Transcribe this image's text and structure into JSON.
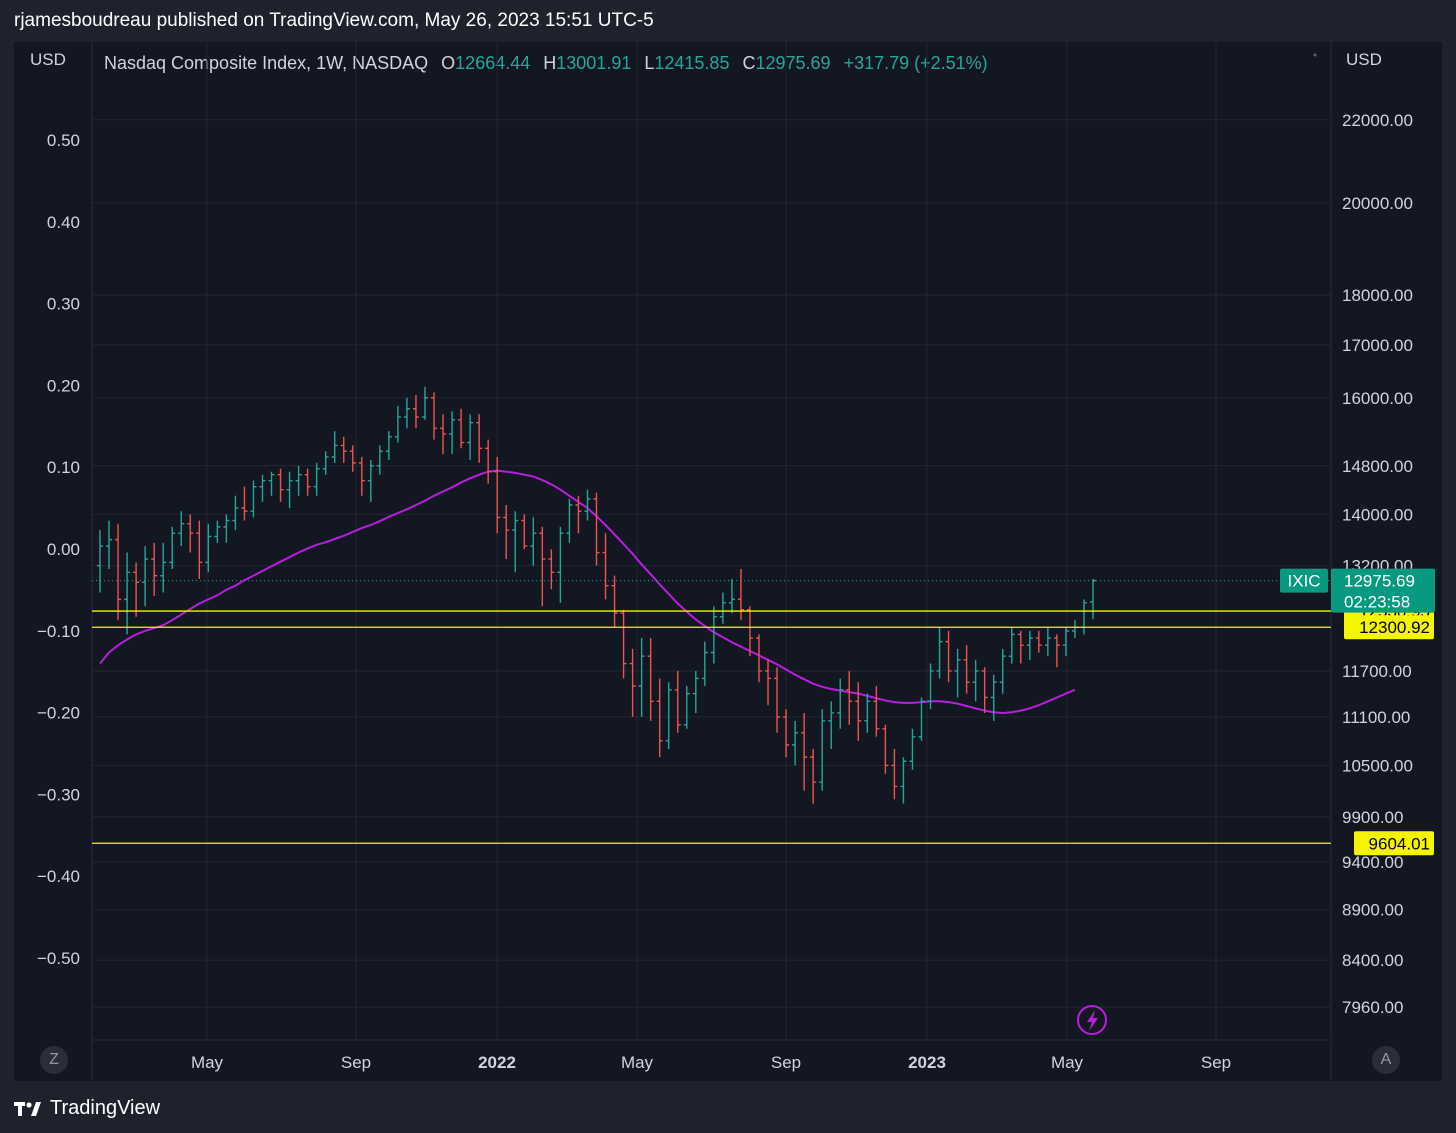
{
  "header": {
    "publisher_line": "rjamesboudreau published on TradingView.com, May 26, 2023 15:51 UTC-5",
    "left_currency": "USD",
    "right_currency": "USD",
    "footer_brand": "TradingView",
    "scale_left_button": "Z",
    "scale_right_button": "A"
  },
  "legend": {
    "symbol_name": "Nasdaq Composite Index, 1W, NASDAQ",
    "open_label": "O",
    "open": "12664.44",
    "high_label": "H",
    "high": "13001.91",
    "low_label": "L",
    "low": "12415.85",
    "close_label": "C",
    "close": "12975.69",
    "change": "+317.79 (+2.51%)"
  },
  "colors": {
    "up": "#26a69a",
    "down": "#ef5350",
    "ma": "#b91de0",
    "level": "#f5f500",
    "grid": "#232734",
    "last_price_badge": "#089981"
  },
  "chart_data": {
    "type": "ohlc",
    "title": "Nasdaq Composite Index, 1W, NASDAQ",
    "right_axis": {
      "scale": "log",
      "ticks": [
        22000,
        20000,
        18000,
        17000,
        16000,
        14800,
        14000,
        13200,
        11700,
        11100,
        10500,
        9900,
        9400,
        8900,
        8400,
        7960
      ]
    },
    "left_axis": {
      "ticks": [
        "0.50",
        "0.40",
        "0.30",
        "0.20",
        "0.10",
        "0.00",
        "−0.10",
        "−0.20",
        "−0.30",
        "−0.40",
        "−0.50"
      ]
    },
    "x_ticks": [
      {
        "label": "May",
        "bold": false
      },
      {
        "label": "Sep",
        "bold": false
      },
      {
        "label": "2022",
        "bold": true
      },
      {
        "label": "May",
        "bold": false
      },
      {
        "label": "Sep",
        "bold": false
      },
      {
        "label": "2023",
        "bold": true
      },
      {
        "label": "May",
        "bold": false
      },
      {
        "label": "Sep",
        "bold": false
      }
    ],
    "series_symbol": "IXIC",
    "last_price": "12975.69",
    "countdown": "02:23:58",
    "horizontal_levels": [
      "12530.95",
      "12300.92",
      "9604.01"
    ],
    "ohlc": [
      [
        13200,
        13750,
        12800,
        13500
      ],
      [
        13500,
        13900,
        13150,
        13600
      ],
      [
        13600,
        13850,
        12400,
        12700
      ],
      [
        12700,
        13400,
        12200,
        13100
      ],
      [
        13100,
        13250,
        12450,
        12950
      ],
      [
        12950,
        13500,
        12600,
        13300
      ],
      [
        13300,
        13550,
        12750,
        13050
      ],
      [
        13050,
        13550,
        12800,
        13250
      ],
      [
        13250,
        13800,
        13150,
        13700
      ],
      [
        13700,
        14050,
        13500,
        13850
      ],
      [
        13850,
        14000,
        13400,
        13700
      ],
      [
        13700,
        13900,
        13000,
        13250
      ],
      [
        13250,
        13850,
        13100,
        13650
      ],
      [
        13650,
        13900,
        13550,
        13800
      ],
      [
        13800,
        14000,
        13550,
        13900
      ],
      [
        13900,
        14300,
        13750,
        14100
      ],
      [
        14100,
        14450,
        13900,
        14050
      ],
      [
        14050,
        14550,
        13950,
        14450
      ],
      [
        14450,
        14650,
        14200,
        14550
      ],
      [
        14550,
        14700,
        14300,
        14650
      ],
      [
        14650,
        14750,
        14200,
        14400
      ],
      [
        14400,
        14700,
        14100,
        14550
      ],
      [
        14550,
        14800,
        14300,
        14650
      ],
      [
        14650,
        14750,
        14300,
        14450
      ],
      [
        14450,
        14850,
        14300,
        14750
      ],
      [
        14750,
        15050,
        14650,
        14950
      ],
      [
        14950,
        15400,
        14850,
        15150
      ],
      [
        15150,
        15300,
        14850,
        15050
      ],
      [
        15050,
        15150,
        14700,
        14850
      ],
      [
        14850,
        14950,
        14300,
        14550
      ],
      [
        14550,
        14900,
        14200,
        14800
      ],
      [
        14800,
        15150,
        14650,
        15050
      ],
      [
        15050,
        15400,
        14900,
        15300
      ],
      [
        15300,
        15850,
        15200,
        15650
      ],
      [
        15650,
        16000,
        15450,
        15800
      ],
      [
        15800,
        16050,
        15450,
        15650
      ],
      [
        15650,
        16200,
        15600,
        16000
      ],
      [
        16000,
        16100,
        15250,
        15450
      ],
      [
        15450,
        15700,
        15000,
        15350
      ],
      [
        15350,
        15750,
        15000,
        15600
      ],
      [
        15600,
        15800,
        15100,
        15200
      ],
      [
        15200,
        15700,
        14900,
        15550
      ],
      [
        15550,
        15700,
        14850,
        15100
      ],
      [
        15100,
        15250,
        14500,
        14700
      ],
      [
        14700,
        14950,
        13700,
        13950
      ],
      [
        13950,
        14150,
        13300,
        13750
      ],
      [
        13750,
        14050,
        13100,
        13900
      ],
      [
        13900,
        14000,
        13450,
        13500
      ],
      [
        13500,
        13950,
        13200,
        13700
      ],
      [
        13700,
        13800,
        12600,
        13300
      ],
      [
        13300,
        13450,
        12850,
        13100
      ],
      [
        13100,
        13800,
        12650,
        13700
      ],
      [
        13700,
        14250,
        13550,
        14150
      ],
      [
        14150,
        14300,
        13700,
        14050
      ],
      [
        14050,
        14400,
        13900,
        14250
      ],
      [
        14250,
        14350,
        13200,
        13400
      ],
      [
        13400,
        13700,
        12700,
        12900
      ],
      [
        12900,
        13050,
        12300,
        12500
      ],
      [
        12500,
        12550,
        11600,
        11800
      ],
      [
        11800,
        12000,
        11100,
        11500
      ],
      [
        11500,
        12150,
        11100,
        11900
      ],
      [
        11900,
        12150,
        11050,
        11300
      ],
      [
        11300,
        11600,
        10600,
        10800
      ],
      [
        10800,
        11550,
        10700,
        11450
      ],
      [
        11450,
        11700,
        10900,
        11000
      ],
      [
        11000,
        11500,
        10950,
        11400
      ],
      [
        11400,
        11700,
        11150,
        11600
      ],
      [
        11600,
        12100,
        11500,
        11950
      ],
      [
        11950,
        12600,
        11800,
        12450
      ],
      [
        12450,
        12800,
        12350,
        12650
      ],
      [
        12650,
        13000,
        12500,
        12700
      ],
      [
        12700,
        13150,
        12400,
        12550
      ],
      [
        12550,
        12600,
        11900,
        12150
      ],
      [
        12150,
        12200,
        11550,
        11700
      ],
      [
        11700,
        11850,
        11250,
        11600
      ],
      [
        11600,
        11750,
        10900,
        11100
      ],
      [
        11100,
        11200,
        10600,
        10750
      ],
      [
        10750,
        11050,
        10500,
        10900
      ],
      [
        10900,
        11150,
        10200,
        10600
      ],
      [
        10600,
        10700,
        10050,
        10300
      ],
      [
        10300,
        11200,
        10200,
        11050
      ],
      [
        11050,
        11300,
        10700,
        11150
      ],
      [
        11150,
        11600,
        10950,
        11450
      ],
      [
        11450,
        11700,
        11000,
        11300
      ],
      [
        11300,
        11550,
        10800,
        11050
      ],
      [
        11050,
        11400,
        10900,
        11300
      ],
      [
        11300,
        11500,
        10850,
        10950
      ],
      [
        10950,
        11000,
        10400,
        10500
      ],
      [
        10500,
        10700,
        10100,
        10250
      ],
      [
        10250,
        10600,
        10050,
        10550
      ],
      [
        10550,
        10950,
        10450,
        10850
      ],
      [
        10850,
        11350,
        10800,
        11300
      ],
      [
        11300,
        11800,
        11200,
        11700
      ],
      [
        11700,
        12300,
        11600,
        12100
      ],
      [
        12100,
        12250,
        11550,
        11700
      ],
      [
        11700,
        12000,
        11350,
        11850
      ],
      [
        11850,
        12050,
        11400,
        11550
      ],
      [
        11550,
        11850,
        11300,
        11700
      ],
      [
        11700,
        11750,
        11150,
        11350
      ],
      [
        11350,
        11650,
        11050,
        11550
      ],
      [
        11550,
        12000,
        11400,
        11900
      ],
      [
        11900,
        12300,
        11800,
        12200
      ],
      [
        12200,
        12250,
        11800,
        12050
      ],
      [
        12050,
        12250,
        11850,
        12150
      ],
      [
        12150,
        12250,
        11950,
        12050
      ],
      [
        12050,
        12300,
        11900,
        12150
      ],
      [
        12150,
        12200,
        11750,
        12050
      ],
      [
        12050,
        12300,
        11900,
        12250
      ],
      [
        12250,
        12400,
        12150,
        12300
      ],
      [
        12300,
        12700,
        12200,
        12650
      ],
      [
        12664.44,
        13001.91,
        12415.85,
        12975.69
      ]
    ],
    "moving_average": [
      11800,
      11950,
      12050,
      12130,
      12200,
      12250,
      12290,
      12330,
      12400,
      12480,
      12560,
      12640,
      12700,
      12760,
      12840,
      12900,
      12980,
      13050,
      13120,
      13190,
      13260,
      13330,
      13400,
      13460,
      13520,
      13560,
      13610,
      13660,
      13720,
      13780,
      13830,
      13890,
      13960,
      14020,
      14080,
      14150,
      14220,
      14300,
      14370,
      14440,
      14520,
      14590,
      14650,
      14700,
      14720,
      14700,
      14680,
      14650,
      14620,
      14560,
      14490,
      14400,
      14300,
      14200,
      14100,
      13970,
      13830,
      13680,
      13530,
      13380,
      13220,
      13070,
      12920,
      12780,
      12640,
      12520,
      12410,
      12320,
      12230,
      12160,
      12090,
      12030,
      11970,
      11910,
      11850,
      11790,
      11720,
      11650,
      11590,
      11530,
      11490,
      11460,
      11440,
      11420,
      11400,
      11370,
      11340,
      11310,
      11290,
      11280,
      11280,
      11290,
      11300,
      11300,
      11290,
      11270,
      11240,
      11210,
      11180,
      11160,
      11150,
      11160,
      11180,
      11210,
      11250,
      11300,
      11350,
      11400,
      11450
    ]
  }
}
